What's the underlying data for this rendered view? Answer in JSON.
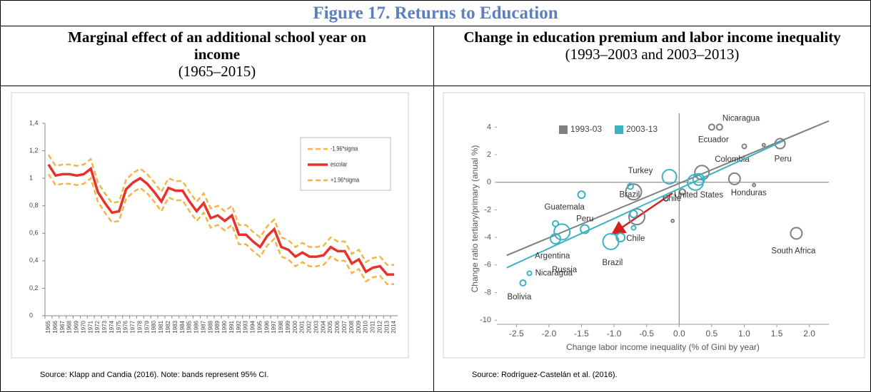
{
  "title": "Figure 17. Returns to Education",
  "panels": [
    {
      "heading": "Marginal effect of an additional school year on income",
      "period": "(1965–2015)",
      "source": "Source: Klapp and Candia (2016). Note: bands represent 95% CI."
    },
    {
      "heading": "Change in education premium and labor income inequality",
      "period": "(1993–2003 and 2003–2013)",
      "source": "Source: Rodríguez-Castelán et al. (2016)."
    }
  ],
  "chart_data": [
    {
      "type": "line",
      "categories": [
        "1965",
        "1966",
        "1967",
        "1968",
        "1969",
        "1970",
        "1971",
        "1972",
        "1973",
        "1974",
        "1975",
        "1976",
        "1977",
        "1978",
        "1979",
        "1980",
        "1981",
        "1982",
        "1983",
        "1984",
        "1985",
        "1986",
        "1987",
        "1988",
        "1989",
        "1990",
        "1991",
        "1992",
        "1993",
        "1994",
        "1995",
        "1996",
        "1997",
        "1998",
        "1999",
        "2000",
        "2001",
        "2002",
        "2003",
        "2004",
        "2005",
        "2006",
        "2007",
        "2008",
        "2009",
        "2010",
        "2011",
        "2012",
        "2013",
        "2014"
      ],
      "series": [
        {
          "name": "-1.96*sigma",
          "color": "#f5b545",
          "dashed": true,
          "values": [
            1.17,
            1.09,
            1.1,
            1.1,
            1.09,
            1.1,
            1.14,
            0.97,
            0.89,
            0.82,
            0.83,
            0.99,
            1.04,
            1.07,
            1.03,
            0.97,
            0.9,
            1.0,
            0.98,
            0.98,
            0.9,
            0.83,
            0.89,
            0.78,
            0.8,
            0.76,
            0.8,
            0.66,
            0.66,
            0.61,
            0.57,
            0.65,
            0.7,
            0.57,
            0.55,
            0.5,
            0.53,
            0.5,
            0.5,
            0.51,
            0.57,
            0.54,
            0.54,
            0.45,
            0.48,
            0.39,
            0.42,
            0.43,
            0.37,
            0.37
          ]
        },
        {
          "name": "escolar",
          "color": "#e8312a",
          "dashed": false,
          "values": [
            1.1,
            1.02,
            1.03,
            1.03,
            1.02,
            1.03,
            1.07,
            0.9,
            0.82,
            0.75,
            0.76,
            0.92,
            0.97,
            1.0,
            0.96,
            0.9,
            0.83,
            0.93,
            0.91,
            0.91,
            0.83,
            0.76,
            0.82,
            0.71,
            0.73,
            0.69,
            0.73,
            0.59,
            0.59,
            0.54,
            0.5,
            0.58,
            0.63,
            0.5,
            0.48,
            0.43,
            0.46,
            0.43,
            0.43,
            0.44,
            0.5,
            0.47,
            0.47,
            0.38,
            0.41,
            0.32,
            0.35,
            0.36,
            0.3,
            0.3
          ]
        },
        {
          "name": "+1.96*sigma",
          "color": "#f5b545",
          "dashed": true,
          "values": [
            1.03,
            0.95,
            0.96,
            0.96,
            0.95,
            0.96,
            1.0,
            0.83,
            0.75,
            0.68,
            0.69,
            0.85,
            0.9,
            0.93,
            0.89,
            0.83,
            0.76,
            0.86,
            0.84,
            0.84,
            0.76,
            0.69,
            0.75,
            0.64,
            0.66,
            0.62,
            0.66,
            0.52,
            0.52,
            0.47,
            0.43,
            0.51,
            0.56,
            0.43,
            0.41,
            0.36,
            0.39,
            0.36,
            0.36,
            0.37,
            0.43,
            0.4,
            0.4,
            0.31,
            0.34,
            0.25,
            0.28,
            0.29,
            0.23,
            0.23
          ]
        }
      ],
      "ylim": [
        0,
        1.4
      ],
      "yticks": [
        0,
        {
          "value": 0.2,
          "label": "0,2"
        },
        {
          "value": 0.4,
          "label": "0,4"
        },
        {
          "value": 0.6,
          "label": "0,6"
        },
        {
          "value": 0.8,
          "label": "0,8"
        },
        1,
        {
          "value": 1.2,
          "label": "1,2"
        },
        {
          "value": 1.4,
          "label": "1,4"
        }
      ],
      "grid": false,
      "legend": "upper right"
    },
    {
      "type": "scatter",
      "xlabel": "Change labor income inequality (% of Gini  by year)",
      "ylabel": "Change ratio tertiary/primary (anual %)",
      "xlim": [
        -2.8,
        2.3
      ],
      "ylim": [
        -10.3,
        5
      ],
      "xticks": [
        -2.5,
        {
          "value": -2,
          "label": "-2.0"
        },
        -1.5,
        {
          "value": -1,
          "label": "-1.0"
        },
        -0.5,
        {
          "value": 0,
          "label": "0.0"
        },
        0.5,
        {
          "value": 1,
          "label": "1.0"
        },
        1.5,
        {
          "value": 2,
          "label": "2.0"
        }
      ],
      "yticks": [
        4,
        2,
        0,
        -2,
        -4,
        -6,
        -8,
        -10
      ],
      "grid": false,
      "legend": "upper left",
      "series": [
        {
          "name": "1993-03",
          "color": "#808080",
          "x": [
            0.5,
            0.62,
            1.55,
            0.35,
            0.85,
            1.8,
            -0.7,
            -0.65,
            -0.1,
            0.05,
            1.0,
            1.3,
            1.15,
            -0.2
          ],
          "y": [
            4.0,
            4.0,
            2.8,
            0.7,
            0.25,
            -3.7,
            -0.7,
            -2.5,
            -2.8,
            -0.7,
            2.6,
            2.7,
            -0.2,
            -1.2
          ],
          "sizes": [
            4,
            4,
            7,
            10,
            8,
            8,
            11,
            11,
            2,
            4,
            3,
            2,
            2,
            3
          ],
          "point_labels": [
            "Nicaragua",
            "Ecuador",
            "Peru",
            "Colombia",
            "Honduras",
            "South Africa",
            "Brazil",
            null,
            null,
            null,
            null,
            null,
            null,
            "Chile"
          ],
          "trend": {
            "x": [
              -2.65,
              2.3
            ],
            "y": [
              -5.3,
              4.45
            ]
          }
        },
        {
          "name": "2003-13",
          "color": "#3bb3c3",
          "x": [
            -0.15,
            0.25,
            -1.5,
            -1.45,
            -1.8,
            -1.9,
            -1.05,
            -0.9,
            -2.3,
            -2.4,
            -0.7,
            -0.75,
            0.3,
            -1.9,
            -0.7
          ],
          "y": [
            0.4,
            0.0,
            -0.9,
            -3.4,
            -3.6,
            -4.1,
            -4.3,
            -4.0,
            -6.6,
            -7.3,
            -2.3,
            -0.3,
            0.2,
            -3.0,
            -3.3
          ],
          "sizes": [
            10,
            11,
            5,
            6,
            11,
            7,
            11,
            6,
            3,
            4,
            5,
            4,
            8,
            4,
            3
          ],
          "point_labels": [
            "Turkey",
            "United States",
            "Guatemala",
            "Peru",
            "Argentina",
            "Russia",
            "Brazil",
            "Chile",
            "Nicaragua",
            "Bolivia",
            null,
            null,
            null,
            null,
            null
          ],
          "trend": {
            "x": [
              -2.65,
              1.6
            ],
            "y": [
              -6.2,
              3.0
            ]
          }
        }
      ]
    }
  ]
}
